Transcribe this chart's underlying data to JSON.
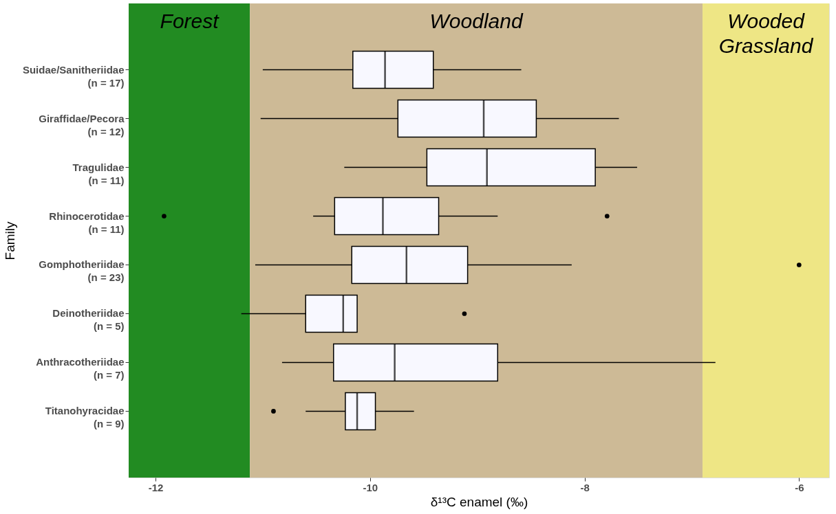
{
  "chart_data": {
    "type": "box",
    "orientation": "horizontal",
    "xlabel": "δ¹³C enamel (‰)",
    "ylabel": "Family",
    "categories": [
      "Suidae/Sanitheriidae\n(n = 17)",
      "Giraffidae/Pecora\n(n = 12)",
      "Tragulidae\n(n = 11)",
      "Rhinocerotidae\n(n = 11)",
      "Gomphotheriidae\n(n = 23)",
      "Deinotheriidae\n(n = 5)",
      "Anthracotheriidae\n(n = 7)",
      "Titanohyracidae\n(n = 9)"
    ],
    "series": [
      {
        "color": "#f8f8ff",
        "boxes": [
          {
            "low": -11.0,
            "q1": -10.16,
            "median": -9.86,
            "q3": -9.41,
            "high": -8.59
          },
          {
            "low": -11.02,
            "q1": -9.74,
            "median": -8.94,
            "q3": -8.45,
            "high": -7.68
          },
          {
            "low": -10.24,
            "q1": -9.47,
            "median": -8.91,
            "q3": -7.9,
            "high": -7.51
          },
          {
            "low": -10.53,
            "q1": -10.33,
            "median": -9.88,
            "q3": -9.36,
            "high": -8.81,
            "outliers": [
              -11.92,
              -7.79
            ]
          },
          {
            "low": -11.07,
            "q1": -10.17,
            "median": -9.66,
            "q3": -9.09,
            "high": -8.12,
            "outliers": [
              -6.0
            ]
          },
          {
            "low": -11.2,
            "q1": -10.6,
            "median": -10.25,
            "q3": -10.12,
            "high": -10.12,
            "outliers": [
              -9.12
            ]
          },
          {
            "low": -10.82,
            "q1": -10.34,
            "median": -9.77,
            "q3": -8.81,
            "high": -6.78
          },
          {
            "low": -10.6,
            "q1": -10.23,
            "median": -10.12,
            "q3": -9.95,
            "high": -9.59,
            "outliers": [
              -10.9
            ]
          }
        ]
      }
    ],
    "xlim": [
      -12.25,
      -5.72
    ],
    "xticks": [
      -12,
      -10,
      -8,
      -6
    ],
    "bands": [
      {
        "axis": "x",
        "from": -12.25,
        "to": -11.12,
        "label": "Forest",
        "color": "#228b22"
      },
      {
        "axis": "x",
        "from": -11.12,
        "to": -6.9,
        "label": "Woodland",
        "color": "#cdba96"
      },
      {
        "axis": "x",
        "from": -6.9,
        "to": -5.72,
        "label": "Wooded\nGrassland",
        "color": "#eee685"
      }
    ],
    "tick_labels": [
      "x",
      "y"
    ]
  }
}
